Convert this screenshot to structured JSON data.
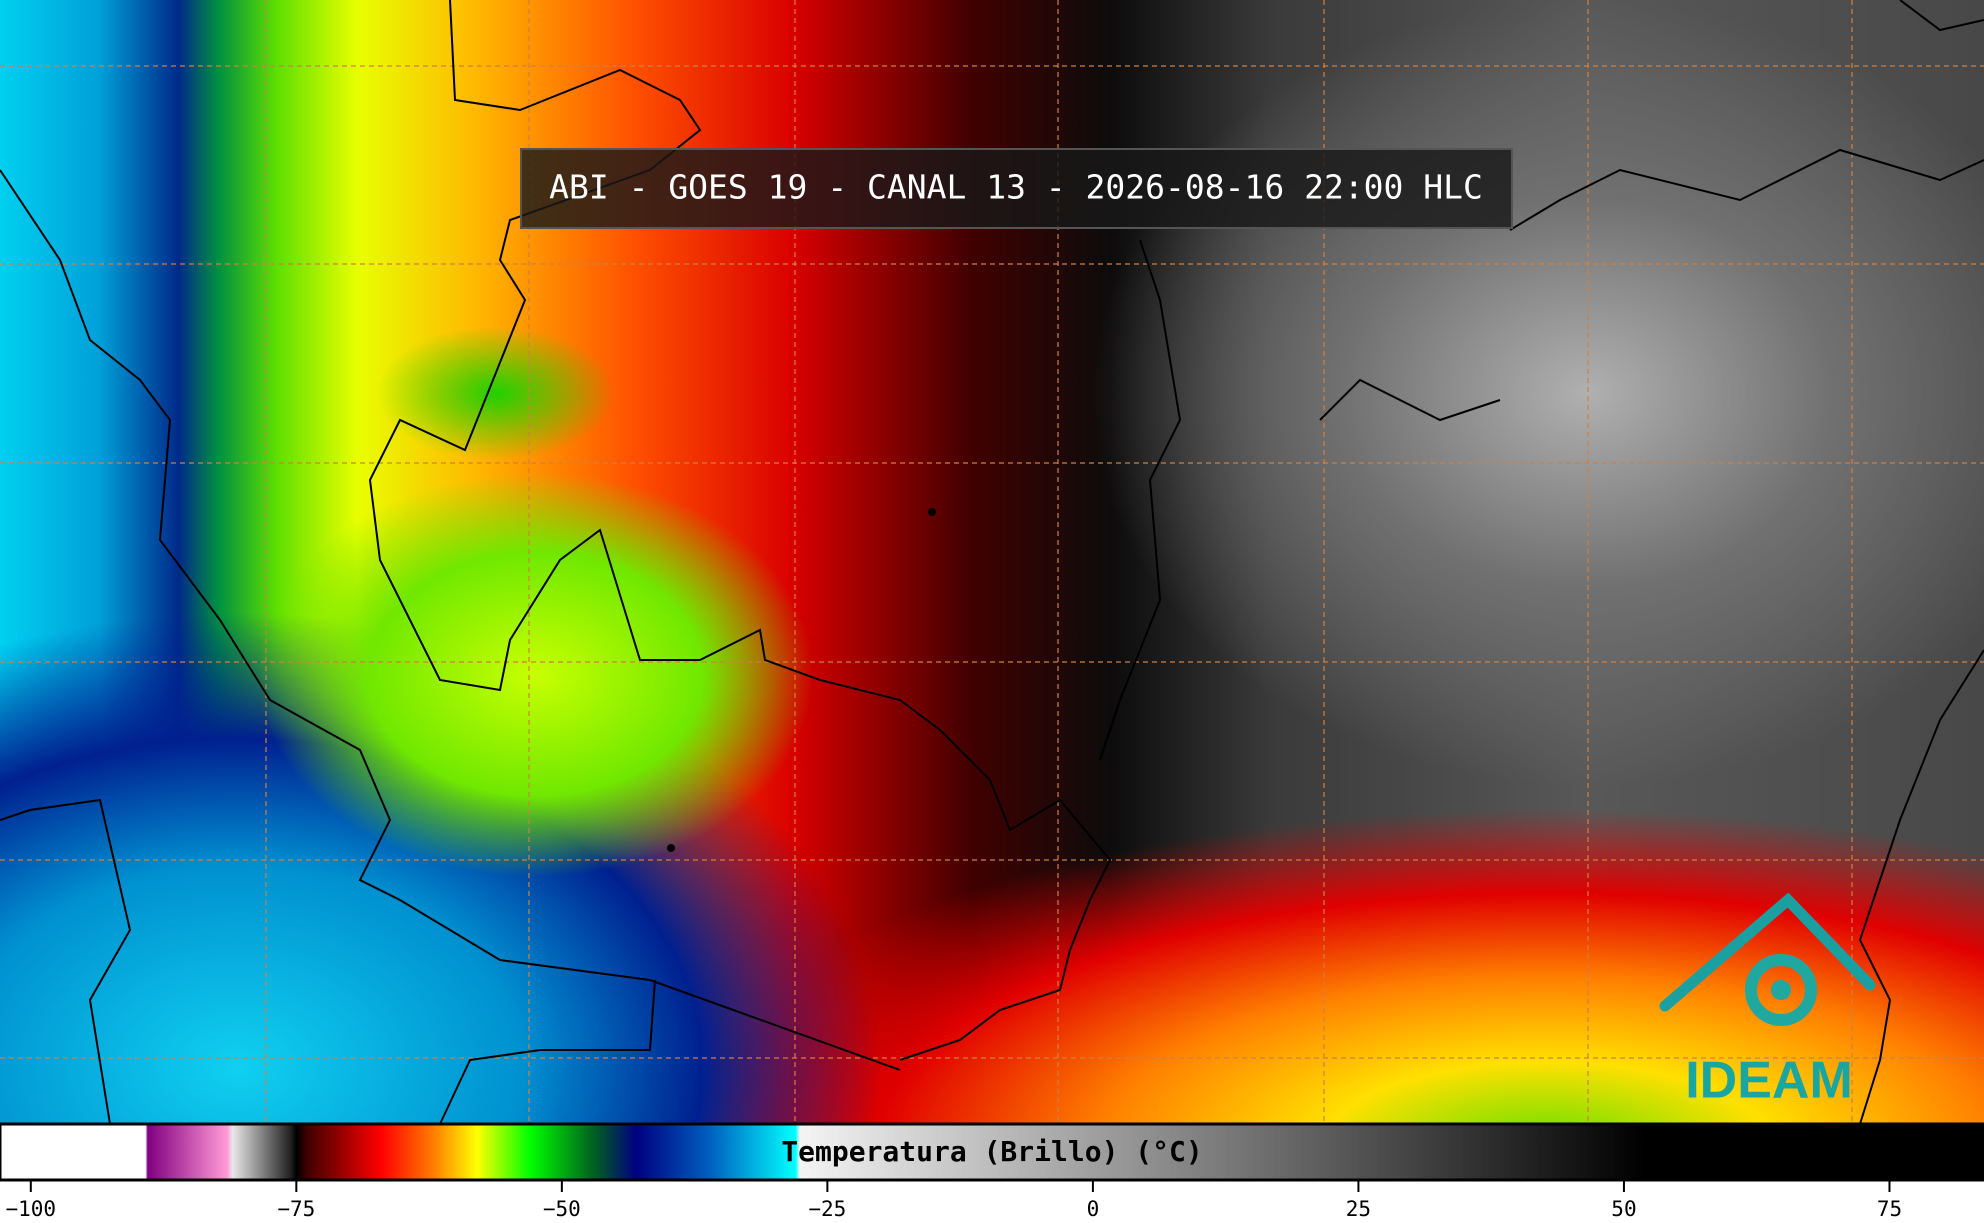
{
  "title": "ABI - GOES 19 - CANAL 13 - 2026-08-16 22:00 HLC",
  "logo": "IDEAM",
  "colorbar": {
    "label": "Temperatura (Brillo) (°C)",
    "lim": [
      -102.9,
      83.9
    ],
    "ticks": [
      {
        "value": -100,
        "label": "−100"
      },
      {
        "value": -75,
        "label": "−75"
      },
      {
        "value": -50,
        "label": "−50"
      },
      {
        "value": -25,
        "label": "−25"
      },
      0,
      25,
      50,
      75
    ],
    "stops": [
      [
        -102.9,
        "#ffffff"
      ],
      [
        -89.2,
        "#ffffff"
      ],
      [
        -89,
        "#800080"
      ],
      [
        -81.5,
        "#ff9ad5"
      ],
      [
        -81,
        "#e8e8e8"
      ],
      [
        -75.5,
        "#202020"
      ],
      [
        -75,
        "#000000"
      ],
      [
        -74,
        "#400000"
      ],
      [
        -67,
        "#ff0000"
      ],
      [
        -62,
        "#ff8000"
      ],
      [
        -58,
        "#ffff00"
      ],
      [
        -53,
        "#00ff00"
      ],
      [
        -47,
        "#006020"
      ],
      [
        -43,
        "#000080"
      ],
      [
        -36,
        "#0060c0"
      ],
      [
        -28,
        "#00ffff"
      ],
      [
        -27.6,
        "#f4f4f4"
      ],
      [
        52,
        "#000000"
      ],
      [
        83.9,
        "#000000"
      ]
    ]
  }
}
